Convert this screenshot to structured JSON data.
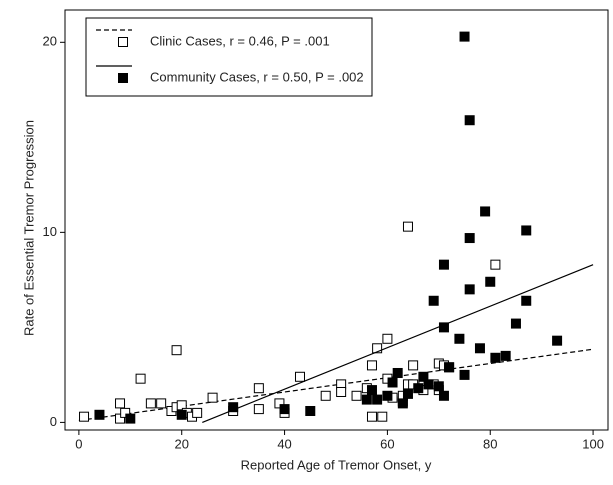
{
  "chart_data": {
    "type": "scatter",
    "x_label": "Reported Age of Tremor Onset, y",
    "y_label": "Rate of Essential Tremor Progression",
    "xlim": [
      -2.7,
      102.9
    ],
    "ylim": [
      -0.4,
      21.7
    ],
    "xticks": [
      0,
      20,
      40,
      60,
      80,
      100
    ],
    "yticks": [
      0,
      10,
      20
    ],
    "series": [
      {
        "name": "Clinic Cases, r = 0.46, P = .001",
        "marker": "open-square",
        "color": "#000000",
        "line_style": "dashed",
        "x": [
          1,
          8,
          8,
          9,
          12,
          14,
          16,
          18,
          19,
          19,
          20,
          21,
          22,
          23,
          26,
          30,
          35,
          35,
          39,
          40,
          43,
          48,
          51,
          51,
          54,
          56,
          57,
          57,
          58,
          59,
          60,
          60,
          61,
          63,
          63,
          64,
          64,
          65,
          65,
          67,
          67,
          69,
          70,
          70,
          71,
          72,
          81
        ],
        "values": [
          0.3,
          0.2,
          1.0,
          0.5,
          2.3,
          1.0,
          1.0,
          0.6,
          0.8,
          3.8,
          0.9,
          0.5,
          0.3,
          0.5,
          1.3,
          0.6,
          0.7,
          1.8,
          1.0,
          0.5,
          2.4,
          1.4,
          2.0,
          1.6,
          1.4,
          1.8,
          0.3,
          3.0,
          3.9,
          0.3,
          2.3,
          4.4,
          1.3,
          1.1,
          1.4,
          2.0,
          10.3,
          2.0,
          3.0,
          2.0,
          1.7,
          2.0,
          1.7,
          3.1,
          3.0,
          2.9,
          8.3
        ],
        "fit_x": [
          0,
          100
        ],
        "fit_y": [
          0.1,
          3.85
        ]
      },
      {
        "name": "Community Cases, r = 0.50, P = .002",
        "marker": "filled-square",
        "color": "#000000",
        "line_style": "solid",
        "x": [
          4,
          10,
          20,
          30,
          40,
          45,
          56,
          57,
          58,
          60,
          61,
          62,
          63,
          64,
          66,
          67,
          68,
          69,
          70,
          71,
          71,
          71,
          72,
          74,
          75,
          75,
          76,
          76,
          76,
          78,
          79,
          80,
          81,
          83,
          85,
          87,
          87,
          93
        ],
        "values": [
          0.4,
          0.2,
          0.4,
          0.8,
          0.7,
          0.6,
          1.2,
          1.7,
          1.2,
          1.4,
          2.1,
          2.6,
          1.0,
          1.5,
          1.8,
          2.4,
          2.0,
          6.4,
          1.9,
          8.3,
          5.0,
          1.4,
          2.9,
          4.4,
          20.3,
          2.5,
          7.0,
          15.9,
          9.7,
          3.9,
          11.1,
          7.4,
          3.4,
          3.5,
          5.2,
          10.1,
          6.4,
          4.3
        ],
        "fit_x": [
          24,
          100
        ],
        "fit_y": [
          0,
          8.3
        ]
      }
    ]
  }
}
